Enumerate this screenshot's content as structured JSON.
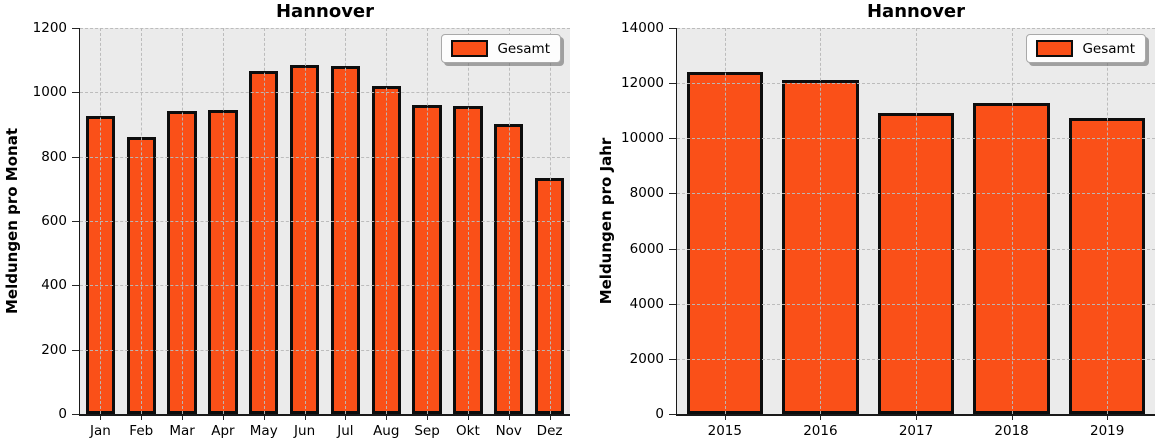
{
  "figure": {
    "background_color": "#ffffff",
    "plot_background_color": "#EBEBEB",
    "bar_fill_color": "#FA5018",
    "bar_edge_color": "#0d0d0d",
    "grid_color": "#b9b9b9",
    "spine_color": "#1a1a1a"
  },
  "chart_data": [
    {
      "type": "bar",
      "title": "Hannover",
      "xlabel": "",
      "ylabel": "Meldungen pro Monat",
      "legend": {
        "label": "Gesamt",
        "position": "upper right"
      },
      "categories": [
        "Jan",
        "Feb",
        "Mar",
        "Apr",
        "May",
        "Jun",
        "Jul",
        "Aug",
        "Sep",
        "Okt",
        "Nov",
        "Dez"
      ],
      "values": [
        926,
        862,
        942,
        944,
        1066,
        1085,
        1081,
        1021,
        960,
        957,
        903,
        735
      ],
      "ylim": [
        0,
        1200
      ],
      "yticks": [
        0,
        200,
        400,
        600,
        800,
        1000,
        1200
      ],
      "grid": "dashed, horizontal and vertical, drawn over bars"
    },
    {
      "type": "bar",
      "title": "Hannover",
      "xlabel": "",
      "ylabel": "Meldungen pro Jahr",
      "legend": {
        "label": "Gesamt",
        "position": "upper right"
      },
      "categories": [
        "2015",
        "2016",
        "2017",
        "2018",
        "2019"
      ],
      "values": [
        12400,
        12100,
        10900,
        11270,
        10720
      ],
      "ylim": [
        0,
        14000
      ],
      "yticks": [
        0,
        2000,
        4000,
        6000,
        8000,
        10000,
        12000,
        14000
      ],
      "grid": "dashed, horizontal and vertical, drawn over bars"
    }
  ]
}
